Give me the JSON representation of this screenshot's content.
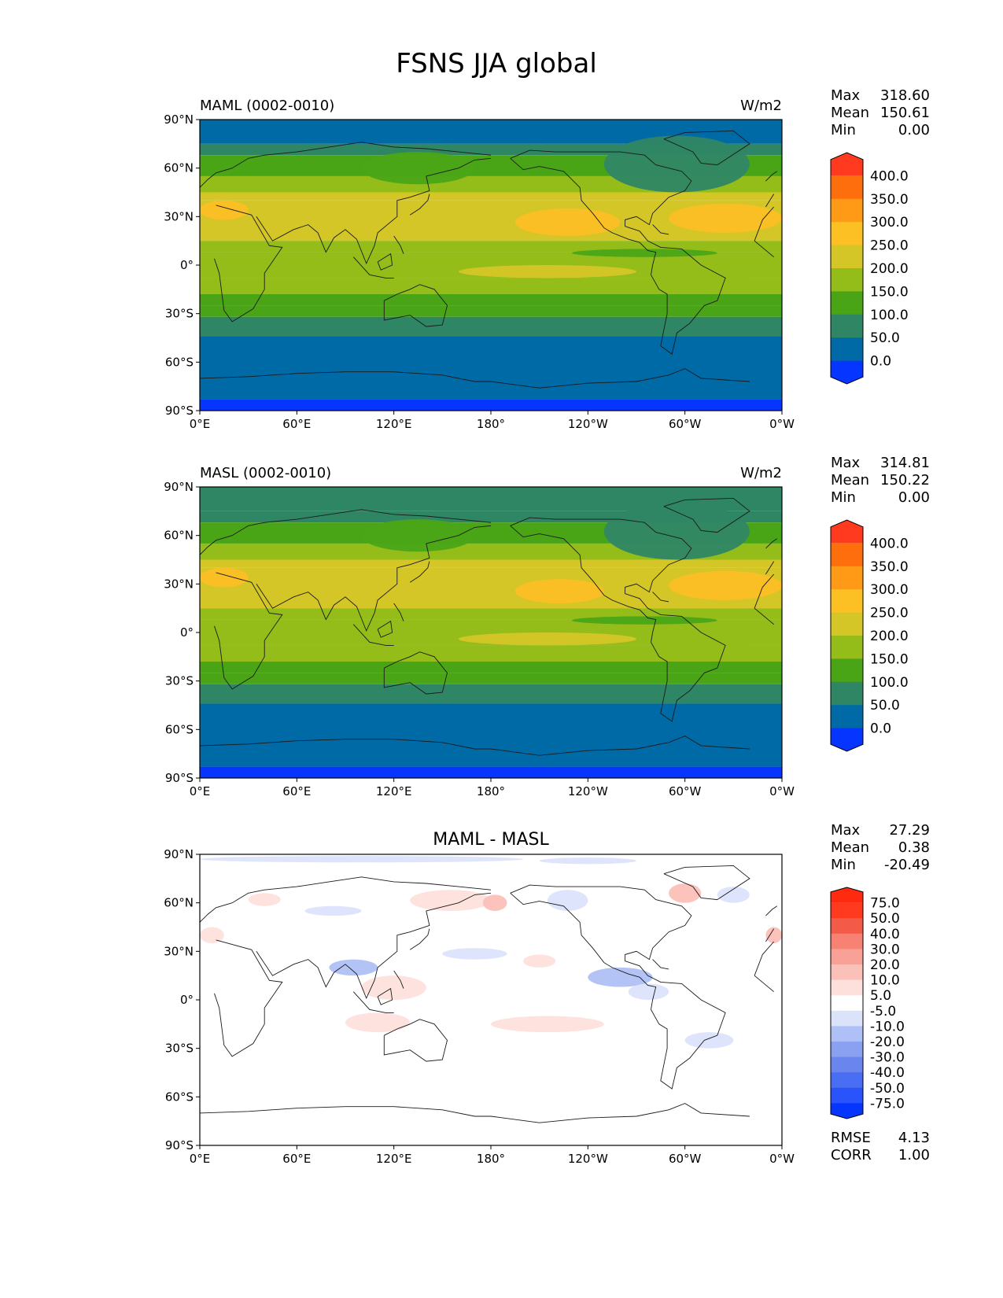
{
  "figure": {
    "title": "FSNS JJA global"
  },
  "chart_data": [
    {
      "type": "heatmap",
      "left_title": "MAML (0002-0010)",
      "center_title": "",
      "units": "W/m2",
      "x_ticks": [
        "0°E",
        "60°E",
        "120°E",
        "180°",
        "120°W",
        "60°W",
        "0°W"
      ],
      "y_ticks": [
        "90°N",
        "60°N",
        "30°N",
        "0°",
        "30°S",
        "60°S",
        "90°S"
      ],
      "xlim": [
        0,
        360
      ],
      "ylim": [
        -90,
        90
      ],
      "stats": [
        {
          "label": "Max",
          "value": "318.60"
        },
        {
          "label": "Mean",
          "value": "150.61"
        },
        {
          "label": "Min",
          "value": "0.00"
        }
      ],
      "colorbar": {
        "levels": [
          "0.0",
          "50.0",
          "100.0",
          "150.0",
          "200.0",
          "250.0",
          "300.0",
          "350.0",
          "400.0"
        ],
        "colors": [
          "#0535ff",
          "#006aa6",
          "#2f8665",
          "#4aa516",
          "#94bd1a",
          "#d4c627",
          "#fcbf24",
          "#ff9a16",
          "#ff6e0c",
          "#ff3a1e"
        ]
      },
      "zonal_bands": [
        {
          "lat": [
            75,
            90
          ],
          "value": 25
        },
        {
          "lat": [
            68,
            75
          ],
          "value": 75
        },
        {
          "lat": [
            55,
            68
          ],
          "value": 125
        },
        {
          "lat": [
            45,
            55
          ],
          "value": 175
        },
        {
          "lat": [
            40,
            45
          ],
          "value": 225
        },
        {
          "lat": [
            15,
            40
          ],
          "value": 225
        },
        {
          "lat": [
            8,
            15
          ],
          "value": 175
        },
        {
          "lat": [
            -8,
            8
          ],
          "value": 175
        },
        {
          "lat": [
            -18,
            -8
          ],
          "value": 175
        },
        {
          "lat": [
            -25,
            -18
          ],
          "value": 125
        },
        {
          "lat": [
            -32,
            -25
          ],
          "value": 125
        },
        {
          "lat": [
            -44,
            -32
          ],
          "value": 75
        },
        {
          "lat": [
            -83,
            -44
          ],
          "value": 25
        },
        {
          "lat": [
            -90,
            -83
          ],
          "value": -25
        }
      ],
      "patches": [
        {
          "lon": [
            195,
            260
          ],
          "lat": [
            18,
            35
          ],
          "value": 275
        },
        {
          "lon": [
            290,
            360
          ],
          "lat": [
            20,
            38
          ],
          "value": 275
        },
        {
          "lon": [
            60,
            110
          ],
          "lat": [
            25,
            35
          ],
          "value": 225
        },
        {
          "lon": [
            0,
            30
          ],
          "lat": [
            28,
            40
          ],
          "value": 275
        },
        {
          "lon": [
            160,
            270
          ],
          "lat": [
            -8,
            0
          ],
          "value": 225
        },
        {
          "lon": [
            230,
            320
          ],
          "lat": [
            5,
            10
          ],
          "value": 125
        },
        {
          "lon": [
            280,
            340
          ],
          "lat": [
            -15,
            5
          ],
          "value": 175
        },
        {
          "lon": [
            250,
            340
          ],
          "lat": [
            45,
            80
          ],
          "value": 75
        },
        {
          "lon": [
            100,
            170
          ],
          "lat": [
            50,
            70
          ],
          "value": 125
        }
      ]
    },
    {
      "type": "heatmap",
      "left_title": "MASL (0002-0010)",
      "center_title": "",
      "units": "W/m2",
      "x_ticks": [
        "0°E",
        "60°E",
        "120°E",
        "180°",
        "120°W",
        "60°W",
        "0°W"
      ],
      "y_ticks": [
        "90°N",
        "60°N",
        "30°N",
        "0°",
        "30°S",
        "60°S",
        "90°S"
      ],
      "xlim": [
        0,
        360
      ],
      "ylim": [
        -90,
        90
      ],
      "stats": [
        {
          "label": "Max",
          "value": "314.81"
        },
        {
          "label": "Mean",
          "value": "150.22"
        },
        {
          "label": "Min",
          "value": "0.00"
        }
      ],
      "colorbar": {
        "levels": [
          "0.0",
          "50.0",
          "100.0",
          "150.0",
          "200.0",
          "250.0",
          "300.0",
          "350.0",
          "400.0"
        ],
        "colors": [
          "#0535ff",
          "#006aa6",
          "#2f8665",
          "#4aa516",
          "#94bd1a",
          "#d4c627",
          "#fcbf24",
          "#ff9a16",
          "#ff6e0c",
          "#ff3a1e"
        ]
      },
      "zonal_bands": [
        {
          "lat": [
            75,
            90
          ],
          "value": 75
        },
        {
          "lat": [
            68,
            75
          ],
          "value": 75
        },
        {
          "lat": [
            55,
            68
          ],
          "value": 125
        },
        {
          "lat": [
            45,
            55
          ],
          "value": 175
        },
        {
          "lat": [
            40,
            45
          ],
          "value": 225
        },
        {
          "lat": [
            15,
            40
          ],
          "value": 225
        },
        {
          "lat": [
            8,
            15
          ],
          "value": 175
        },
        {
          "lat": [
            -8,
            8
          ],
          "value": 175
        },
        {
          "lat": [
            -18,
            -8
          ],
          "value": 175
        },
        {
          "lat": [
            -25,
            -18
          ],
          "value": 125
        },
        {
          "lat": [
            -32,
            -25
          ],
          "value": 125
        },
        {
          "lat": [
            -44,
            -32
          ],
          "value": 75
        },
        {
          "lat": [
            -83,
            -44
          ],
          "value": 25
        },
        {
          "lat": [
            -90,
            -83
          ],
          "value": -25
        }
      ],
      "patches": [
        {
          "lon": [
            195,
            250
          ],
          "lat": [
            18,
            33
          ],
          "value": 275
        },
        {
          "lon": [
            290,
            360
          ],
          "lat": [
            20,
            38
          ],
          "value": 275
        },
        {
          "lon": [
            60,
            110
          ],
          "lat": [
            25,
            35
          ],
          "value": 225
        },
        {
          "lon": [
            0,
            30
          ],
          "lat": [
            28,
            40
          ],
          "value": 275
        },
        {
          "lon": [
            160,
            270
          ],
          "lat": [
            -8,
            0
          ],
          "value": 225
        },
        {
          "lon": [
            230,
            320
          ],
          "lat": [
            5,
            10
          ],
          "value": 125
        },
        {
          "lon": [
            280,
            340
          ],
          "lat": [
            -15,
            5
          ],
          "value": 175
        },
        {
          "lon": [
            250,
            340
          ],
          "lat": [
            45,
            80
          ],
          "value": 75
        },
        {
          "lon": [
            100,
            170
          ],
          "lat": [
            50,
            70
          ],
          "value": 125
        }
      ]
    },
    {
      "type": "heatmap",
      "left_title": "",
      "center_title": "MAML - MASL",
      "units": "",
      "x_ticks": [
        "0°E",
        "60°E",
        "120°E",
        "180°",
        "120°W",
        "60°W",
        "0°W"
      ],
      "y_ticks": [
        "90°N",
        "60°N",
        "30°N",
        "0°",
        "30°S",
        "60°S",
        "90°S"
      ],
      "xlim": [
        0,
        360
      ],
      "ylim": [
        -90,
        90
      ],
      "stats": [
        {
          "label": "Max",
          "value": "27.29"
        },
        {
          "label": "Mean",
          "value": "0.38"
        },
        {
          "label": "Min",
          "value": "-20.49"
        }
      ],
      "colorbar": {
        "levels": [
          "-75.0",
          "-50.0",
          "-40.0",
          "-30.0",
          "-20.0",
          "-10.0",
          "-5.0",
          "5.0",
          "10.0",
          "20.0",
          "30.0",
          "40.0",
          "50.0",
          "75.0"
        ],
        "colors": [
          "#0535ff",
          "#2a54fb",
          "#4a6ef3",
          "#6a86ee",
          "#8aa0f1",
          "#afc0f6",
          "#dbe3fb",
          "#ffffff",
          "#fde0dc",
          "#fbc0b8",
          "#f9a196",
          "#f78173",
          "#f45a48",
          "#ff3a1e",
          "#ff2a10"
        ]
      },
      "zonal_bands": [
        {
          "lat": [
            84,
            90
          ],
          "value": 0
        },
        {
          "lat": [
            -90,
            84
          ],
          "value": 0
        }
      ],
      "patches": [
        {
          "lon": [
            0,
            200
          ],
          "lat": [
            85,
            89
          ],
          "value": -7
        },
        {
          "lon": [
            210,
            270
          ],
          "lat": [
            84,
            88
          ],
          "value": -7
        },
        {
          "lon": [
            65,
            100
          ],
          "lat": [
            52,
            58
          ],
          "value": -7
        },
        {
          "lon": [
            130,
            180
          ],
          "lat": [
            55,
            68
          ],
          "value": 7
        },
        {
          "lon": [
            175,
            190
          ],
          "lat": [
            55,
            65
          ],
          "value": 12
        },
        {
          "lon": [
            215,
            240
          ],
          "lat": [
            55,
            68
          ],
          "value": -7
        },
        {
          "lon": [
            290,
            310
          ],
          "lat": [
            60,
            72
          ],
          "value": 12
        },
        {
          "lon": [
            320,
            340
          ],
          "lat": [
            60,
            70
          ],
          "value": -7
        },
        {
          "lon": [
            150,
            190
          ],
          "lat": [
            25,
            32
          ],
          "value": -7
        },
        {
          "lon": [
            200,
            220
          ],
          "lat": [
            20,
            28
          ],
          "value": 7
        },
        {
          "lon": [
            80,
            110
          ],
          "lat": [
            15,
            25
          ],
          "value": -12
        },
        {
          "lon": [
            100,
            140
          ],
          "lat": [
            0,
            15
          ],
          "value": 7
        },
        {
          "lon": [
            240,
            280
          ],
          "lat": [
            8,
            20
          ],
          "value": -12
        },
        {
          "lon": [
            180,
            250
          ],
          "lat": [
            -20,
            -10
          ],
          "value": 7
        },
        {
          "lon": [
            90,
            130
          ],
          "lat": [
            -20,
            -8
          ],
          "value": 7
        },
        {
          "lon": [
            265,
            290
          ],
          "lat": [
            0,
            10
          ],
          "value": -7
        },
        {
          "lon": [
            300,
            330
          ],
          "lat": [
            -30,
            -20
          ],
          "value": -7
        },
        {
          "lon": [
            0,
            15
          ],
          "lat": [
            35,
            45
          ],
          "value": 7
        },
        {
          "lon": [
            350,
            360
          ],
          "lat": [
            35,
            45
          ],
          "value": 12
        },
        {
          "lon": [
            30,
            50
          ],
          "lat": [
            58,
            66
          ],
          "value": 7
        }
      ]
    }
  ],
  "diff_metrics": [
    {
      "label": "RMSE",
      "value": "4.13"
    },
    {
      "label": "CORR",
      "value": "1.00"
    }
  ]
}
